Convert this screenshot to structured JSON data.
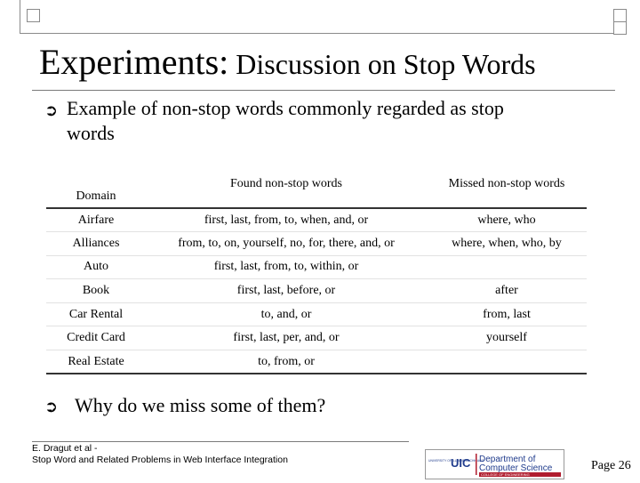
{
  "title": {
    "main": "Experiments:",
    "sub": "Discussion on Stop Words"
  },
  "bullets": {
    "intro_line1": "Example of non-stop words commonly regarded as stop",
    "intro_line2": "words",
    "question": "Why do we miss some of them?"
  },
  "table": {
    "headers": {
      "domain": "Domain",
      "found": "Found non-stop words",
      "missed": "Missed non-stop words"
    },
    "rows": [
      {
        "domain": "Airfare",
        "found": "first, last, from, to, when, and, or",
        "missed": "where, who"
      },
      {
        "domain": "Alliances",
        "found": "from, to, on, yourself, no, for, there, and, or",
        "missed": "where, when, who, by"
      },
      {
        "domain": "Auto",
        "found": "first, last, from, to, within, or",
        "missed": ""
      },
      {
        "domain": "Book",
        "found": "first, last, before, or",
        "missed": "after"
      },
      {
        "domain": "Car Rental",
        "found": "to, and, or",
        "missed": "from, last"
      },
      {
        "domain": "Credit Card",
        "found": "first, last, per, and, or",
        "missed": "yourself"
      },
      {
        "domain": "Real Estate",
        "found": "to, from, or",
        "missed": ""
      }
    ]
  },
  "footer": {
    "author": "E. Dragut et al -",
    "paper": "Stop Word and Related Problems in Web Interface Integration",
    "logo_uic": "UIC",
    "logo_dept1": "Department of",
    "logo_dept2": "Computer Science",
    "logo_college": "COLLEGE OF ENGINEERING",
    "logo_univ": "UNIVERSITY OF ILLINOIS AT CHICAGO",
    "page": "Page 26"
  },
  "colors": {
    "uic_red": "#b01c2e",
    "uic_blue": "#1f3b8c",
    "rule_gray": "#8a8a8a"
  },
  "icons": {
    "bullet": "circled-arrow-icon"
  }
}
